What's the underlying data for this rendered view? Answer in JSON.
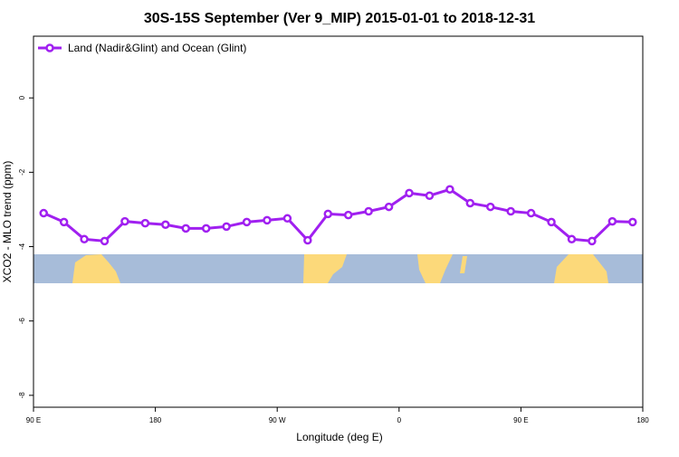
{
  "chart_data": {
    "type": "line",
    "title": "30S-15S September (Ver 9_MIP)   2015-01-01 to 2018-12-31",
    "x_label": "Longitude (deg E)",
    "y_label": "XCO2 - MLO trend (ppm)",
    "x": [
      97.5,
      112.5,
      127.5,
      142.5,
      157.5,
      172.5,
      187.5,
      202.5,
      217.5,
      232.5,
      247.5,
      262.5,
      277.5,
      292.5,
      307.5,
      322.5,
      337.5,
      352.5,
      367.5,
      382.5,
      397.5,
      412.5,
      427.5,
      442.5,
      457.5,
      472.5,
      487.5,
      502.5,
      517.5,
      532.5
    ],
    "series": [
      {
        "name": "Land (Nadir&Glint) and Ocean (Glint)",
        "color": "#a020f0",
        "values": [
          -3.1,
          -3.34,
          -3.8,
          -3.85,
          -3.32,
          -3.37,
          -3.41,
          -3.51,
          -3.51,
          -3.46,
          -3.34,
          -3.29,
          -3.24,
          -3.83,
          -3.12,
          -3.15,
          -3.05,
          -2.93,
          -2.56,
          -2.63,
          -2.46,
          -2.83,
          -2.93,
          -3.05,
          -3.1,
          -3.34,
          -3.8,
          -3.85,
          -3.32,
          -3.34
        ]
      }
    ],
    "xlim": [
      90,
      540
    ],
    "xticks": [
      {
        "value": 90,
        "label": "90 E"
      },
      180,
      {
        "value": 270,
        "label": "90 W"
      },
      {
        "value": 360,
        "label": "0"
      },
      {
        "value": 450,
        "label": "90 E"
      },
      {
        "value": 540,
        "label": "180"
      }
    ],
    "ylim": [
      -8.32,
      1.66
    ],
    "yticks": [
      0,
      -2,
      -4,
      -6,
      -8
    ],
    "legend": "top-left"
  }
}
